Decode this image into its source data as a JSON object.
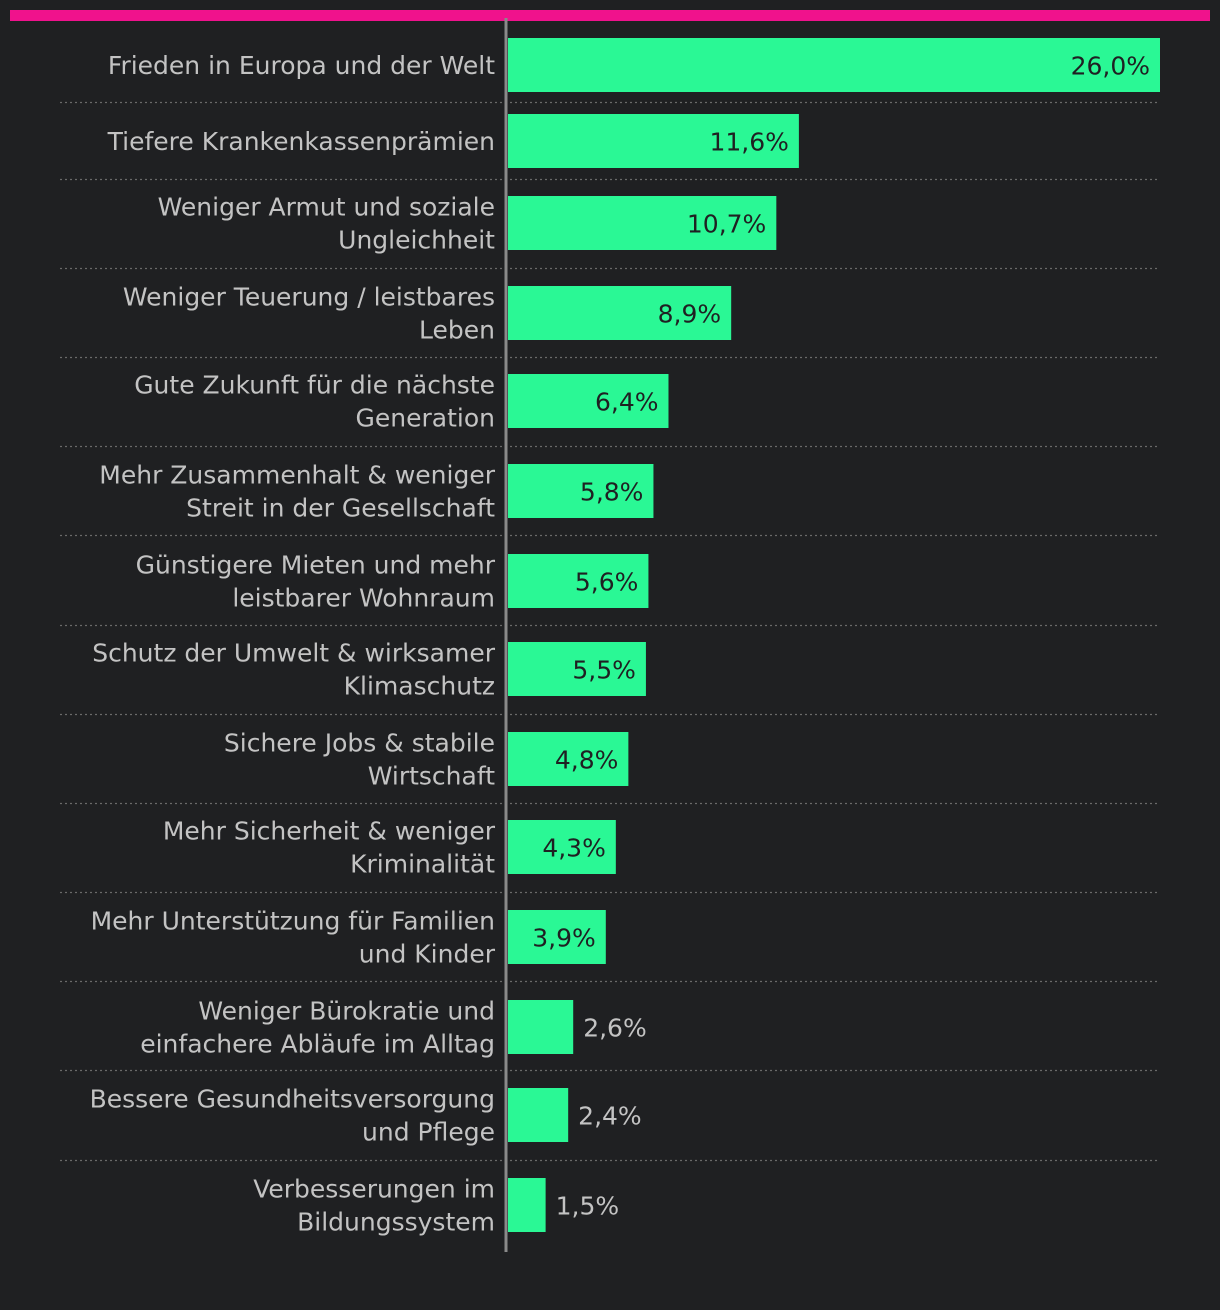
{
  "colors": {
    "background": "#1f2022",
    "accent_bar": "#f0128c",
    "bar": "#2af895",
    "label_text": "#c3c3c3",
    "value_inside": "#1f2022",
    "value_outside": "#c3c3c3",
    "axis": "#8a8a8a",
    "separator": "#6a6a6a"
  },
  "chart_data": {
    "type": "bar",
    "orientation": "horizontal",
    "unit": "%",
    "xlim": [
      0,
      26.0
    ],
    "grid": false,
    "categories": [
      [
        "Frieden in Europa und der Welt"
      ],
      [
        "Tiefere Krankenkassenprämien"
      ],
      [
        "Weniger Armut und soziale",
        "Ungleichheit"
      ],
      [
        "Weniger Teuerung / leistbares",
        "Leben"
      ],
      [
        "Gute Zukunft für die nächste",
        "Generation"
      ],
      [
        "Mehr Zusammenhalt & weniger",
        "Streit in der Gesellschaft"
      ],
      [
        "Günstigere Mieten und mehr",
        "leistbarer Wohnraum"
      ],
      [
        "Schutz der Umwelt & wirksamer",
        "Klimaschutz"
      ],
      [
        "Sichere Jobs & stabile",
        "Wirtschaft"
      ],
      [
        "Mehr Sicherheit & weniger",
        "Kriminalität"
      ],
      [
        "Mehr Unterstützung für Familien",
        "und Kinder"
      ],
      [
        "Weniger Bürokratie und",
        "einfachere Abläufe im Alltag"
      ],
      [
        "Bessere Gesundheitsversorgung",
        "und Pflege"
      ],
      [
        "Verbesserungen im",
        "Bildungssystem"
      ]
    ],
    "values": [
      26.0,
      11.6,
      10.7,
      8.9,
      6.4,
      5.8,
      5.6,
      5.5,
      4.8,
      4.3,
      3.9,
      2.6,
      2.4,
      1.5
    ],
    "value_labels": [
      "26,0%",
      "11,6%",
      "10,7%",
      "8,9%",
      "6,4%",
      "5,8%",
      "5,6%",
      "5,5%",
      "4,8%",
      "4,3%",
      "3,9%",
      "2,6%",
      "2,4%",
      "1,5%"
    ]
  }
}
